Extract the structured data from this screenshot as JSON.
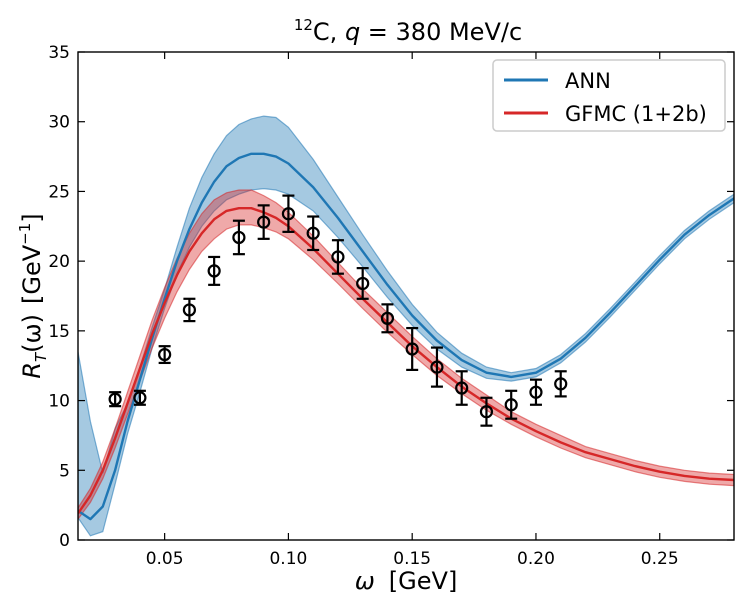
{
  "chart_data": {
    "type": "line",
    "title_super": "12",
    "title_main": "C, ",
    "title_var": "q",
    "title_rest": " = 380 MeV/c",
    "xlabel_var": "ω",
    "xlabel_unit": "[GeV]",
    "ylabel_main": "R",
    "ylabel_sub": "T",
    "ylabel_arg": "(ω)",
    "ylabel_unit": "[GeV",
    "ylabel_exp": "−1",
    "ylabel_close": "]",
    "xlim": [
      0.015,
      0.28
    ],
    "ylim": [
      0,
      35
    ],
    "xticks": [
      0.05,
      0.1,
      0.15,
      0.2,
      0.25
    ],
    "xtick_labels": [
      "0.05",
      "0.10",
      "0.15",
      "0.20",
      "0.25"
    ],
    "yticks": [
      0,
      5,
      10,
      15,
      20,
      25,
      30,
      35
    ],
    "ytick_labels": [
      "0",
      "5",
      "10",
      "15",
      "20",
      "25",
      "30",
      "35"
    ],
    "legend_position": "top-right",
    "colors": {
      "ann": "#1f77b4",
      "gfmc": "#d62728",
      "data": "#000000"
    },
    "series": [
      {
        "name": "ANN",
        "x": [
          0.015,
          0.02,
          0.025,
          0.03,
          0.035,
          0.04,
          0.045,
          0.05,
          0.055,
          0.06,
          0.065,
          0.07,
          0.075,
          0.08,
          0.085,
          0.09,
          0.095,
          0.1,
          0.11,
          0.12,
          0.13,
          0.14,
          0.15,
          0.16,
          0.17,
          0.18,
          0.19,
          0.2,
          0.21,
          0.22,
          0.23,
          0.24,
          0.25,
          0.26,
          0.27,
          0.28
        ],
        "y": [
          2.1,
          1.5,
          2.4,
          5.0,
          8.5,
          11.5,
          14.5,
          17.3,
          20.0,
          22.3,
          24.2,
          25.7,
          26.8,
          27.4,
          27.7,
          27.7,
          27.5,
          27.0,
          25.3,
          23.1,
          20.7,
          18.3,
          16.1,
          14.3,
          12.9,
          12.0,
          11.7,
          12.0,
          13.0,
          14.5,
          16.3,
          18.2,
          20.1,
          21.9,
          23.3,
          24.5
        ],
        "lower": [
          1.6,
          0.3,
          0.6,
          4.0,
          7.6,
          10.6,
          13.8,
          16.6,
          19.1,
          21.0,
          22.5,
          23.6,
          24.4,
          24.8,
          25.1,
          25.2,
          25.1,
          24.8,
          23.6,
          21.7,
          19.6,
          17.4,
          15.4,
          13.7,
          12.4,
          11.6,
          11.4,
          11.7,
          12.7,
          14.2,
          16.0,
          17.9,
          19.8,
          21.6,
          23.0,
          24.2
        ],
        "upper": [
          13.5,
          8.5,
          4.8,
          8.0,
          9.8,
          12.4,
          15.3,
          18.0,
          21.0,
          23.8,
          26.0,
          27.7,
          29.0,
          29.8,
          30.2,
          30.4,
          30.3,
          29.6,
          27.3,
          24.6,
          21.9,
          19.3,
          16.9,
          14.9,
          13.4,
          12.4,
          12.0,
          12.3,
          13.3,
          14.8,
          16.6,
          18.5,
          20.4,
          22.2,
          23.6,
          24.8
        ]
      },
      {
        "name": "GFMC (1+2b)",
        "x": [
          0.015,
          0.02,
          0.025,
          0.03,
          0.035,
          0.04,
          0.045,
          0.05,
          0.055,
          0.06,
          0.065,
          0.07,
          0.075,
          0.08,
          0.085,
          0.09,
          0.095,
          0.1,
          0.11,
          0.12,
          0.13,
          0.14,
          0.15,
          0.16,
          0.17,
          0.18,
          0.19,
          0.2,
          0.21,
          0.22,
          0.23,
          0.24,
          0.25,
          0.26,
          0.27,
          0.28
        ],
        "y": [
          1.9,
          3.2,
          5.0,
          7.3,
          9.8,
          12.3,
          14.8,
          17.0,
          19.0,
          20.7,
          22.0,
          23.0,
          23.6,
          23.8,
          23.8,
          23.5,
          23.1,
          22.5,
          20.9,
          19.1,
          17.3,
          15.6,
          13.9,
          12.4,
          11.0,
          9.8,
          8.7,
          7.8,
          7.0,
          6.3,
          5.8,
          5.3,
          4.9,
          4.6,
          4.4,
          4.3
        ],
        "lower": [
          1.5,
          2.7,
          4.4,
          6.6,
          9.0,
          11.4,
          13.8,
          15.9,
          17.8,
          19.4,
          20.7,
          21.6,
          22.3,
          22.6,
          22.6,
          22.4,
          22.1,
          21.6,
          20.1,
          18.4,
          16.6,
          14.9,
          13.3,
          11.8,
          10.5,
          9.3,
          8.3,
          7.4,
          6.6,
          5.9,
          5.4,
          4.9,
          4.5,
          4.2,
          4.0,
          3.9
        ],
        "upper": [
          2.3,
          3.7,
          5.6,
          8.0,
          10.6,
          13.2,
          15.8,
          18.1,
          20.2,
          22.0,
          23.4,
          24.4,
          24.9,
          25.1,
          25.1,
          24.7,
          24.2,
          23.5,
          21.8,
          19.9,
          18.0,
          16.3,
          14.6,
          13.0,
          11.6,
          10.4,
          9.2,
          8.3,
          7.5,
          6.7,
          6.2,
          5.7,
          5.3,
          5.0,
          4.8,
          4.7
        ]
      }
    ],
    "points": {
      "name": "data",
      "x": [
        0.03,
        0.04,
        0.05,
        0.06,
        0.07,
        0.08,
        0.09,
        0.1,
        0.11,
        0.12,
        0.13,
        0.14,
        0.15,
        0.16,
        0.17,
        0.18,
        0.19,
        0.2,
        0.21
      ],
      "y": [
        10.1,
        10.2,
        13.3,
        16.5,
        19.3,
        21.7,
        22.8,
        23.4,
        22.0,
        20.3,
        18.4,
        15.9,
        13.7,
        12.4,
        10.9,
        9.2,
        9.7,
        10.6,
        11.2
      ],
      "err": [
        0.5,
        0.5,
        0.6,
        0.8,
        1.0,
        1.2,
        1.2,
        1.3,
        1.2,
        1.2,
        1.1,
        1.0,
        1.5,
        1.4,
        1.2,
        1.0,
        1.0,
        0.9,
        0.9
      ]
    }
  }
}
